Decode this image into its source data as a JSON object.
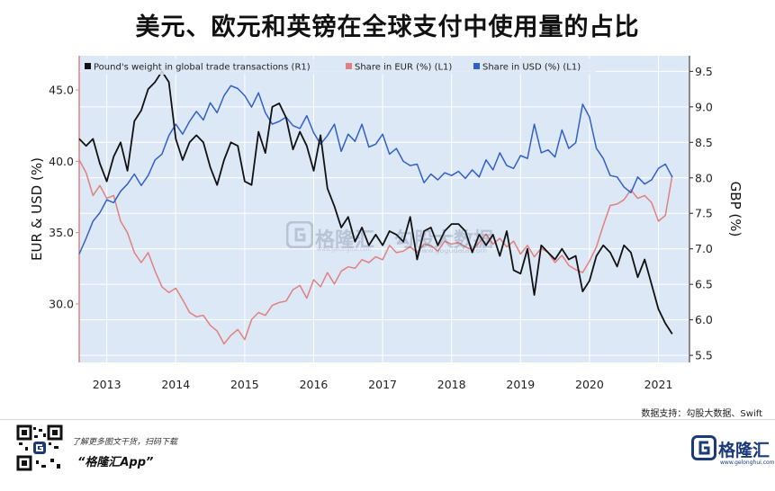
{
  "title": "美元、欧元和英镑在全球支付中使用量的占比",
  "source": "数据支持：勾股大数据、Swift",
  "footer": {
    "tagline": "了解更多图文干货，扫码下载",
    "app_name": "“格隆汇App”",
    "brand_name": "格隆汇",
    "brand_url": "www.gelonghui.com"
  },
  "watermark": {
    "brand": "格隆汇",
    "brand_url": "www.gelonghui.com",
    "partner": "勾股大数据",
    "partner_url": "www.gogudata.com"
  },
  "colors": {
    "pound": "#111111",
    "eur": "#e08080",
    "usd": "#3060c8",
    "plot_bg": "#dde8f6",
    "gridline": "#ffffff",
    "left_axis": "#e08080"
  },
  "chart_data": {
    "type": "line",
    "title": "",
    "xlabel": "",
    "ylabel_left": "EUR & USD (%)",
    "ylabel_right": "GBP (%)",
    "xlim": [
      2012.6,
      2021.45
    ],
    "ylim_left": [
      25.9,
      47.4
    ],
    "ylim_right": [
      5.4,
      9.72
    ],
    "x_ticks": [
      2013,
      2014,
      2015,
      2016,
      2017,
      2018,
      2019,
      2020,
      2021
    ],
    "y_ticks_left": [
      "30.0",
      "35.0",
      "40.0",
      "45.0"
    ],
    "y_ticks_right": [
      "5.5",
      "6.0",
      "6.5",
      "7.0",
      "7.5",
      "8.0",
      "8.5",
      "9.0",
      "9.5"
    ],
    "grid": true,
    "legend_position": "top-left",
    "series": [
      {
        "name": "Pound's weight in global trade transactions (R1)",
        "axis": "right",
        "x": [
          2012.6,
          2012.7,
          2012.8,
          2012.9,
          2013.0,
          2013.1,
          2013.2,
          2013.3,
          2013.4,
          2013.5,
          2013.6,
          2013.7,
          2013.8,
          2013.9,
          2014.0,
          2014.1,
          2014.2,
          2014.3,
          2014.4,
          2014.5,
          2014.6,
          2014.7,
          2014.8,
          2014.9,
          2015.0,
          2015.1,
          2015.2,
          2015.3,
          2015.4,
          2015.5,
          2015.6,
          2015.7,
          2015.8,
          2015.9,
          2016.0,
          2016.1,
          2016.2,
          2016.3,
          2016.4,
          2016.5,
          2016.6,
          2016.7,
          2016.8,
          2016.9,
          2017.0,
          2017.1,
          2017.2,
          2017.3,
          2017.4,
          2017.5,
          2017.6,
          2017.7,
          2017.8,
          2017.9,
          2018.0,
          2018.1,
          2018.2,
          2018.3,
          2018.4,
          2018.5,
          2018.6,
          2018.7,
          2018.8,
          2018.9,
          2019.0,
          2019.1,
          2019.2,
          2019.3,
          2019.4,
          2019.5,
          2019.6,
          2019.7,
          2019.8,
          2019.9,
          2020.0,
          2020.1,
          2020.2,
          2020.3,
          2020.4,
          2020.5,
          2020.6,
          2020.7,
          2020.8,
          2020.9,
          2021.0,
          2021.1,
          2021.2
        ],
        "values": [
          8.55,
          8.45,
          8.55,
          8.2,
          7.95,
          8.3,
          8.5,
          8.1,
          8.8,
          8.95,
          9.25,
          9.35,
          9.5,
          9.35,
          8.55,
          8.25,
          8.5,
          8.6,
          8.5,
          8.15,
          7.9,
          8.25,
          8.5,
          8.45,
          7.95,
          7.9,
          8.65,
          8.35,
          9.0,
          9.05,
          8.85,
          8.4,
          8.65,
          8.45,
          8.1,
          8.6,
          7.85,
          7.6,
          7.3,
          7.45,
          7.1,
          7.3,
          7.05,
          7.2,
          7.05,
          7.25,
          7.2,
          7.1,
          7.45,
          6.85,
          7.25,
          7.3,
          7.05,
          7.25,
          7.35,
          7.35,
          7.25,
          6.95,
          7.2,
          7.05,
          7.2,
          6.9,
          7.25,
          6.7,
          6.65,
          7.0,
          6.35,
          7.05,
          6.95,
          6.85,
          7.0,
          6.85,
          6.9,
          6.4,
          6.55,
          6.9,
          7.05,
          6.95,
          6.75,
          7.05,
          6.95,
          6.6,
          6.85,
          6.5,
          6.15,
          5.95,
          5.8
        ]
      },
      {
        "name": "Share in EUR (%) (L1)",
        "axis": "left",
        "x": [
          2012.6,
          2012.7,
          2012.8,
          2012.9,
          2013.0,
          2013.1,
          2013.2,
          2013.3,
          2013.4,
          2013.5,
          2013.6,
          2013.7,
          2013.8,
          2013.9,
          2014.0,
          2014.1,
          2014.2,
          2014.3,
          2014.4,
          2014.5,
          2014.6,
          2014.7,
          2014.8,
          2014.9,
          2015.0,
          2015.1,
          2015.2,
          2015.3,
          2015.4,
          2015.5,
          2015.6,
          2015.7,
          2015.8,
          2015.9,
          2016.0,
          2016.1,
          2016.2,
          2016.3,
          2016.4,
          2016.5,
          2016.6,
          2016.7,
          2016.8,
          2016.9,
          2017.0,
          2017.1,
          2017.2,
          2017.3,
          2017.4,
          2017.5,
          2017.6,
          2017.7,
          2017.8,
          2017.9,
          2018.0,
          2018.1,
          2018.2,
          2018.3,
          2018.4,
          2018.5,
          2018.6,
          2018.7,
          2018.8,
          2018.9,
          2019.0,
          2019.1,
          2019.2,
          2019.3,
          2019.4,
          2019.5,
          2019.6,
          2019.7,
          2019.8,
          2019.9,
          2020.0,
          2020.1,
          2020.2,
          2020.3,
          2020.4,
          2020.5,
          2020.6,
          2020.7,
          2020.8,
          2020.9,
          2021.0,
          2021.1,
          2021.2
        ],
        "values": [
          40.1,
          39.2,
          37.6,
          38.3,
          37.4,
          37.6,
          35.8,
          35.0,
          33.6,
          32.9,
          33.6,
          32.3,
          31.2,
          30.8,
          31.1,
          30.3,
          29.4,
          29.1,
          29.2,
          28.5,
          28.1,
          27.2,
          27.8,
          28.2,
          27.5,
          28.9,
          29.4,
          29.2,
          29.9,
          30.1,
          30.2,
          31.0,
          31.3,
          30.4,
          31.7,
          31.2,
          32.2,
          31.4,
          32.3,
          32.6,
          32.5,
          33.1,
          32.9,
          33.3,
          33.1,
          34.1,
          33.6,
          33.7,
          34.0,
          33.6,
          34.2,
          34.1,
          33.7,
          34.4,
          34.2,
          34.3,
          34.0,
          33.8,
          34.3,
          34.9,
          34.2,
          34.6,
          34.0,
          34.4,
          33.5,
          34.1,
          33.3,
          33.9,
          33.6,
          32.9,
          33.4,
          32.7,
          32.4,
          32.2,
          33.0,
          34.0,
          35.5,
          36.9,
          37.0,
          37.3,
          38.0,
          37.4,
          37.6,
          37.1,
          35.8,
          36.2,
          39.0
        ]
      },
      {
        "name": "Share in USD (%) (L1)",
        "axis": "left",
        "x": [
          2012.6,
          2012.7,
          2012.8,
          2012.9,
          2013.0,
          2013.1,
          2013.2,
          2013.3,
          2013.4,
          2013.5,
          2013.6,
          2013.7,
          2013.8,
          2013.9,
          2014.0,
          2014.1,
          2014.2,
          2014.3,
          2014.4,
          2014.5,
          2014.6,
          2014.7,
          2014.8,
          2014.9,
          2015.0,
          2015.1,
          2015.2,
          2015.3,
          2015.4,
          2015.5,
          2015.6,
          2015.7,
          2015.8,
          2015.9,
          2016.0,
          2016.1,
          2016.2,
          2016.3,
          2016.4,
          2016.5,
          2016.6,
          2016.7,
          2016.8,
          2016.9,
          2017.0,
          2017.1,
          2017.2,
          2017.3,
          2017.4,
          2017.5,
          2017.6,
          2017.7,
          2017.8,
          2017.9,
          2018.0,
          2018.1,
          2018.2,
          2018.3,
          2018.4,
          2018.5,
          2018.6,
          2018.7,
          2018.8,
          2018.9,
          2019.0,
          2019.1,
          2019.2,
          2019.3,
          2019.4,
          2019.5,
          2019.6,
          2019.7,
          2019.8,
          2019.9,
          2020.0,
          2020.1,
          2020.2,
          2020.3,
          2020.4,
          2020.5,
          2020.6,
          2020.7,
          2020.8,
          2020.9,
          2021.0,
          2021.1,
          2021.2
        ],
        "values": [
          33.5,
          34.6,
          35.8,
          36.4,
          37.3,
          37.1,
          37.9,
          38.4,
          39.1,
          38.3,
          39.0,
          40.1,
          40.5,
          41.8,
          42.6,
          41.9,
          42.8,
          43.5,
          42.9,
          44.1,
          43.4,
          44.6,
          45.3,
          45.1,
          44.6,
          43.8,
          44.8,
          43.4,
          42.6,
          42.8,
          43.1,
          42.5,
          42.3,
          43.2,
          42.0,
          41.2,
          41.8,
          42.6,
          40.7,
          41.9,
          41.4,
          42.6,
          41.0,
          41.2,
          41.9,
          40.5,
          40.9,
          40.0,
          39.7,
          39.8,
          38.5,
          39.1,
          38.7,
          39.2,
          39.0,
          39.3,
          38.8,
          39.4,
          38.9,
          40.1,
          39.4,
          40.6,
          39.7,
          39.5,
          40.4,
          40.2,
          42.6,
          40.6,
          40.8,
          40.3,
          42.2,
          40.9,
          41.3,
          44.0,
          43.1,
          40.9,
          40.2,
          39.0,
          38.9,
          38.2,
          37.8,
          38.9,
          38.4,
          38.7,
          39.5,
          39.8,
          38.9
        ]
      }
    ]
  }
}
